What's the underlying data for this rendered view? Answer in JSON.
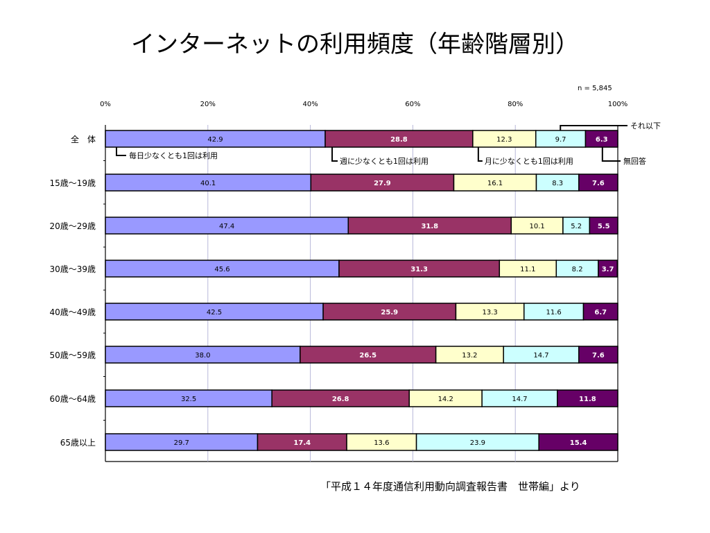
{
  "title": "インターネットの利用頻度（年齢階層別）",
  "source_note": "「平成１４年度通信利用動向調査報告書　世帯編」より",
  "sample_size": "n = 5,845",
  "colors": {
    "daily": "#9999ff",
    "weekly": "#993366",
    "monthly": "#ffffcc",
    "less": "#ccffff",
    "no_answer": "#660066"
  },
  "chart_data": {
    "type": "bar",
    "orientation": "horizontal",
    "stacked": true,
    "title": "インターネットの利用頻度（年齢階層別）",
    "xlim": [
      0,
      100
    ],
    "ticks": [
      "0%",
      "20%",
      "40%",
      "60%",
      "80%",
      "100%"
    ],
    "grid": true,
    "categories": [
      "全　体",
      "15歳～19歳",
      "20歳～29歳",
      "30歳～39歳",
      "40歳～49歳",
      "50歳～59歳",
      "60歳～64歳",
      "65歳以上"
    ],
    "series": [
      {
        "name": "毎日少なくとも1回は利用",
        "key": "daily",
        "values": [
          42.9,
          40.1,
          47.4,
          45.6,
          42.5,
          38.0,
          32.5,
          29.7
        ]
      },
      {
        "name": "週に少なくとも1回は利用",
        "key": "weekly",
        "values": [
          28.8,
          27.9,
          31.8,
          31.3,
          25.9,
          26.5,
          26.8,
          17.4
        ]
      },
      {
        "name": "月に少なくとも1回は利用",
        "key": "monthly",
        "values": [
          12.3,
          16.1,
          10.1,
          11.1,
          13.3,
          13.2,
          14.2,
          13.6
        ]
      },
      {
        "name": "それ以下",
        "key": "less",
        "values": [
          9.7,
          8.3,
          5.2,
          8.2,
          11.6,
          14.7,
          14.7,
          23.9
        ]
      },
      {
        "name": "無回答",
        "key": "no_answer",
        "values": [
          6.3,
          7.6,
          5.5,
          3.7,
          6.7,
          7.6,
          11.8,
          15.4
        ]
      }
    ]
  }
}
